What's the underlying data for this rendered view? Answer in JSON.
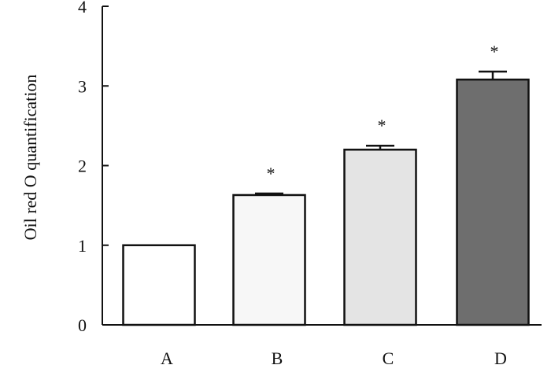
{
  "chart_data": {
    "type": "bar",
    "title": "",
    "xlabel": "",
    "ylabel": "Oil red O quantification",
    "ylim": [
      0,
      4
    ],
    "yticks": [
      "0",
      "1",
      "2",
      "3",
      "4"
    ],
    "categories": [
      "A",
      "B",
      "C",
      "D"
    ],
    "values": [
      1.0,
      1.63,
      2.2,
      3.08
    ],
    "error": [
      0.0,
      0.02,
      0.05,
      0.1
    ],
    "significance": [
      "",
      "*",
      "*",
      "*"
    ],
    "bar_colors": [
      "#ffffff",
      "#f7f7f7",
      "#e4e4e4",
      "#6e6e6e"
    ],
    "grid": false,
    "legend": "none"
  }
}
